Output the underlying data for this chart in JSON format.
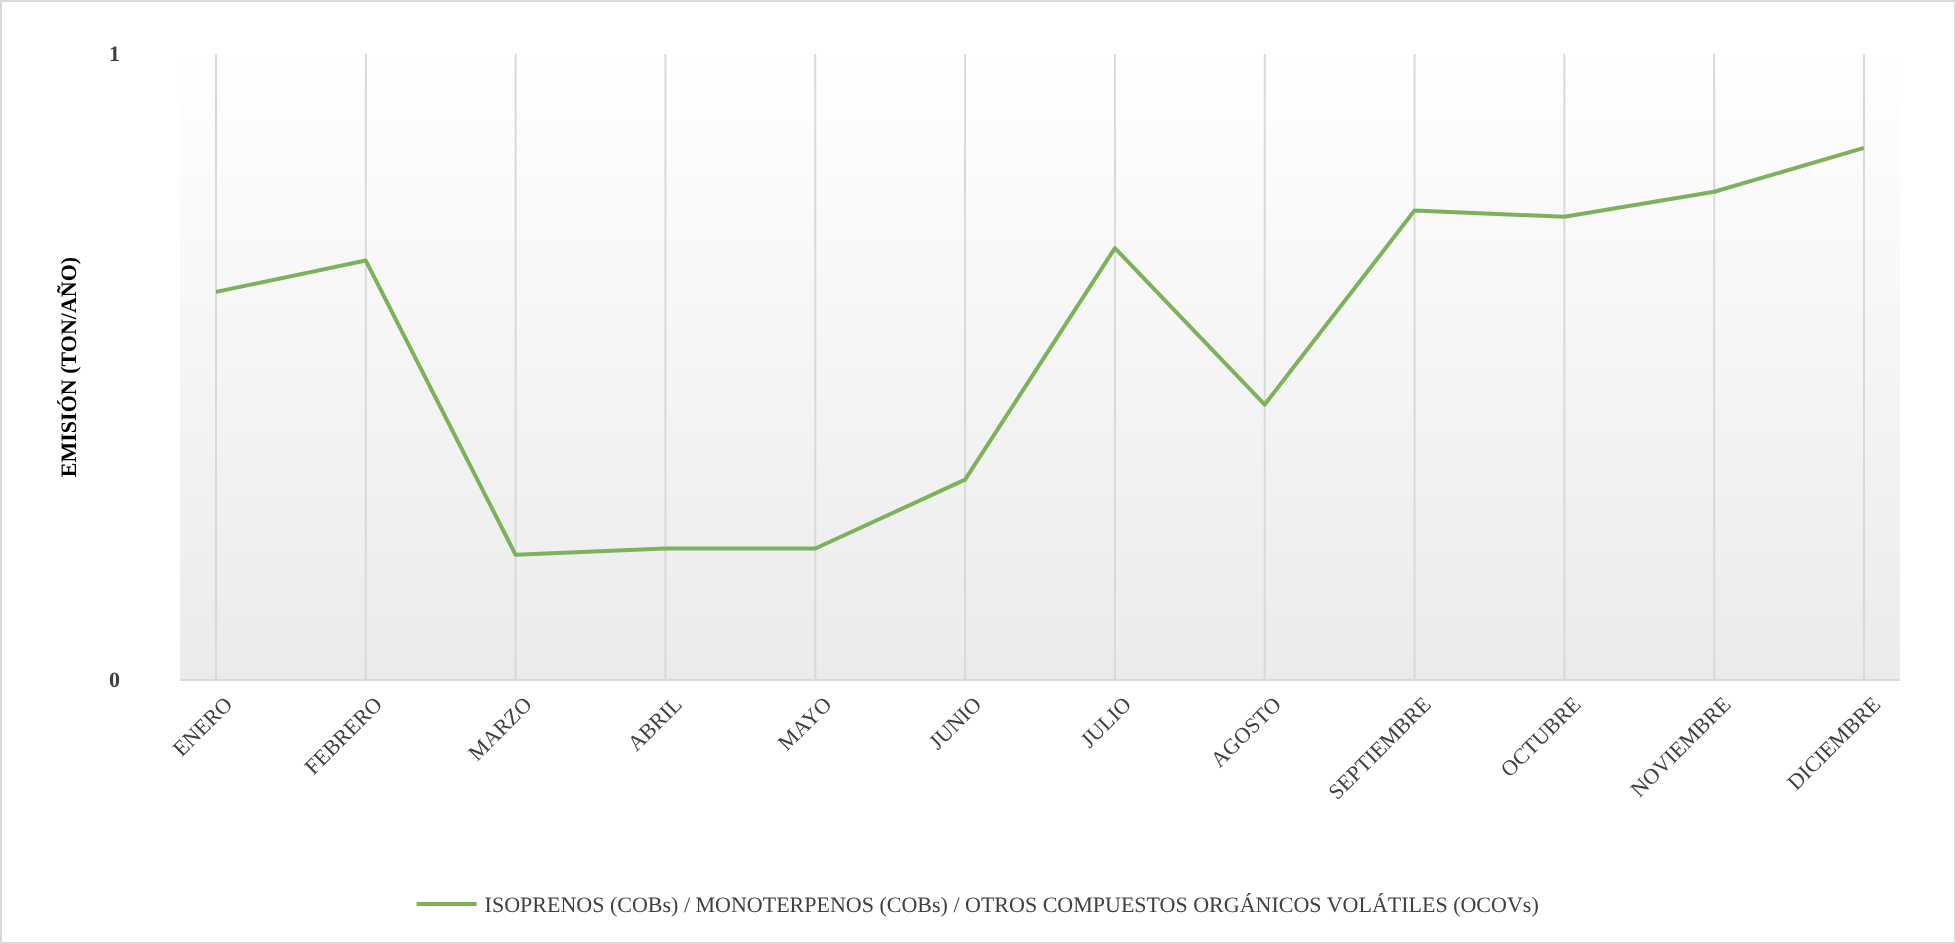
{
  "chart_data": {
    "type": "line",
    "ylabel": "EMISIÓN (TON/AÑO)",
    "categories": [
      "ENERO",
      "FEBRERO",
      "MARZO",
      "ABRIL",
      "MAYO",
      "JUNIO",
      "JULIO",
      "AGOSTO",
      "SEPTIEMBRE",
      "OCTUBRE",
      "NOVIEMBRE",
      "DICIEMBRE"
    ],
    "series": [
      {
        "name": "ISOPRENOS (COBs) / MONOTERPENOS (COBs) / OTROS COMPUESTOS ORGÁNICOS VOLÁTILES (OCOVs)",
        "color": "#7cb35a",
        "values": [
          0.62,
          0.67,
          0.2,
          0.21,
          0.21,
          0.32,
          0.69,
          0.44,
          0.75,
          0.74,
          0.78,
          0.85
        ]
      }
    ],
    "ylim": [
      0,
      1
    ],
    "yticks": [
      0,
      1
    ],
    "grid": "x",
    "legend": "bottom",
    "marker": "none",
    "line_style": "solid"
  }
}
